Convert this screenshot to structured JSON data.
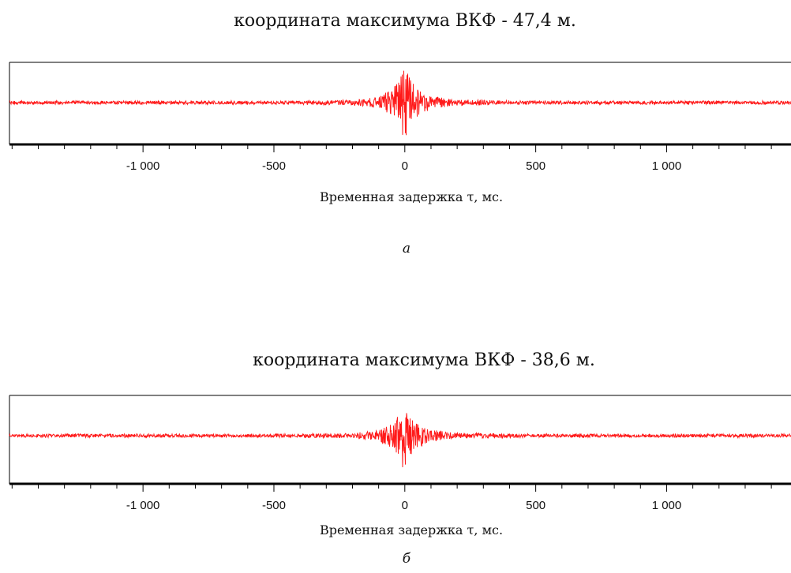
{
  "figure": {
    "panel_a": {
      "title": "координата максимума ВКФ - 47,4 м.",
      "xlabel": "Временная задержка τ, мс.",
      "sublabel": "а"
    },
    "panel_b": {
      "title": "координата максимума ВКФ - 38,6 м.",
      "xlabel": "Временная задержка τ, мс.",
      "sublabel": "б"
    }
  },
  "colors": {
    "signal": "#ff1a1a",
    "axis": "#000000"
  },
  "chart_data": [
    {
      "type": "line",
      "title": "координата максимума ВКФ - 47,4 м.",
      "xlabel": "Временная задержка τ, мс.",
      "ylabel": "",
      "xlim": [
        -1510,
        1475
      ],
      "xticks": [
        -1000,
        -500,
        0,
        500,
        1000
      ],
      "xtick_labels": [
        "-1 000",
        "-500",
        "0",
        "500",
        "1 000"
      ],
      "grid": false,
      "series": [
        {
          "x": [
            -1500,
            -500,
            -200,
            -100,
            -50,
            -20,
            -5,
            0,
            5,
            20,
            50,
            100,
            200,
            500,
            1475
          ],
          "y": [
            0.0,
            0.0,
            0.02,
            0.1,
            0.3,
            0.6,
            0.9,
            1.0,
            0.85,
            0.55,
            0.3,
            0.12,
            0.03,
            0.0,
            0.0
          ]
        }
      ]
    },
    {
      "type": "line",
      "title": "координата максимума ВКФ - 38,6 м.",
      "xlabel": "Временная задержка τ, мс.",
      "ylabel": "",
      "xlim": [
        -1510,
        1475
      ],
      "xticks": [
        -1000,
        -500,
        0,
        500,
        1000
      ],
      "xtick_labels": [
        "-1 000",
        "-500",
        "0",
        "500",
        "1 000"
      ],
      "grid": false,
      "series": [
        {
          "x": [
            -1500,
            -500,
            -200,
            -100,
            -50,
            -20,
            -5,
            0,
            5,
            20,
            50,
            100,
            200,
            500,
            1475
          ],
          "y": [
            0.0,
            0.0,
            0.02,
            0.1,
            0.3,
            0.6,
            0.9,
            1.0,
            0.85,
            0.55,
            0.3,
            0.12,
            0.03,
            0.0,
            0.0
          ]
        }
      ]
    }
  ]
}
